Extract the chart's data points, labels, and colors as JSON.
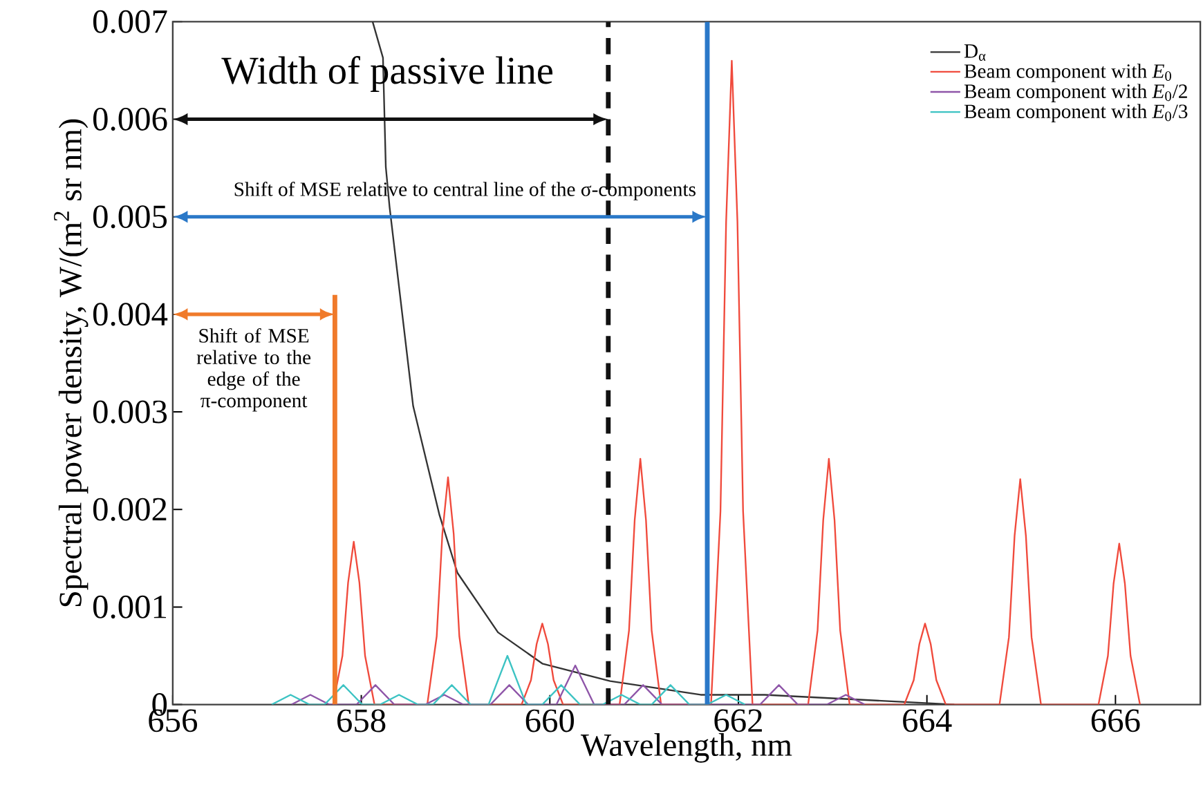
{
  "chart_data": {
    "type": "line",
    "xlabel": "Wavelength, nm",
    "ylabel": "Spectral power density, W/(m$^{2}$ sr nm)",
    "xlim": [
      656,
      666.9
    ],
    "ylim": [
      0,
      0.007
    ],
    "xticks": [
      656,
      658,
      660,
      662,
      664,
      666
    ],
    "yticks": [
      0,
      0.001,
      0.002,
      0.003,
      0.004,
      0.005,
      0.006,
      0.007
    ],
    "legend": "top right",
    "line_style": "solid",
    "series": [
      {
        "name": "D$_{α}$",
        "color": "#333333",
        "x": [
          658.12,
          658.23,
          658.26,
          658.3,
          658.55,
          658.83,
          659.02,
          659.45,
          659.92,
          660.64,
          661.6,
          662.28,
          664.29
        ],
        "values": [
          0.007,
          0.00663,
          0.00551,
          0.0051,
          0.00306,
          0.00194,
          0.00135,
          0.00074,
          0.00042,
          0.00024,
          0.0001,
          0.0001,
          0
        ]
      },
      {
        "name": "Beam component with *E*$_{0}$",
        "color": "#f04a3c",
        "x": [
          657.7,
          657.8,
          657.86,
          657.92,
          657.98,
          658.04,
          658.14,
          658.7,
          658.8,
          658.86,
          658.92,
          658.98,
          659.04,
          659.14,
          659.7,
          659.8,
          659.86,
          659.92,
          659.98,
          660.04,
          660.14,
          660.74,
          660.84,
          660.9,
          660.96,
          661.02,
          661.08,
          661.18,
          661.71,
          661.81,
          661.87,
          661.93,
          661.99,
          662.05,
          662.15,
          662.74,
          662.84,
          662.9,
          662.96,
          663.02,
          663.08,
          663.18,
          663.76,
          663.86,
          663.92,
          663.98,
          664.04,
          664.1,
          664.2,
          664.77,
          664.87,
          664.93,
          664.99,
          665.05,
          665.11,
          665.21,
          665.82,
          665.92,
          665.98,
          666.04,
          666.1,
          666.16,
          666.26
        ],
        "values": [
          0,
          0.0005,
          0.00125,
          0.00167,
          0.00125,
          0.0005,
          0,
          0,
          0.0007,
          0.00175,
          0.00233,
          0.00175,
          0.0007,
          0,
          0,
          0.00025,
          0.00062,
          0.00083,
          0.00062,
          0.00025,
          0,
          0,
          0.00076,
          0.00189,
          0.00252,
          0.00189,
          0.00076,
          0,
          0,
          0.00198,
          0.00495,
          0.0066,
          0.00495,
          0.00198,
          0,
          0,
          0.00076,
          0.00189,
          0.00252,
          0.00189,
          0.00076,
          0,
          0,
          0.00025,
          0.00062,
          0.00083,
          0.00062,
          0.00025,
          0,
          0,
          0.00069,
          0.00173,
          0.00231,
          0.00173,
          0.00069,
          0,
          0,
          0.0005,
          0.00124,
          0.00165,
          0.00124,
          0.0005,
          0
        ]
      },
      {
        "name": "Beam component with *E*$_{0}$/2",
        "color": "#8e55a8",
        "x": [
          657.26,
          657.46,
          657.66,
          657.95,
          658.15,
          658.35,
          658.68,
          658.88,
          659.08,
          659.37,
          659.57,
          659.77,
          660.07,
          660.27,
          660.47,
          660.79,
          660.99,
          661.19,
          662.23,
          662.43,
          662.63,
          662.94,
          663.14,
          663.34
        ],
        "values": [
          0,
          0.0001,
          0,
          0,
          0.0002,
          0,
          0,
          0.0001,
          0,
          0,
          0.0002,
          0,
          0,
          0.0004,
          0,
          0,
          0.0002,
          0,
          0,
          0.0002,
          0,
          0,
          0.0001,
          0
        ]
      },
      {
        "name": "Beam component with *E*$_{0}$/3",
        "color": "#3cc3c3",
        "x": [
          657.05,
          657.25,
          657.45,
          657.61,
          657.81,
          658.01,
          658.2,
          658.4,
          658.6,
          658.76,
          658.96,
          659.16,
          659.35,
          659.55,
          659.75,
          659.92,
          660.12,
          660.32,
          660.56,
          660.76,
          660.96,
          661.08,
          661.28,
          661.48,
          661.67,
          661.87,
          662.07
        ],
        "values": [
          0,
          0.0001,
          0,
          0,
          0.0002,
          0,
          0,
          0.0001,
          0,
          0,
          0.0002,
          0,
          0,
          0.0005,
          0,
          0,
          0.0002,
          0,
          0,
          0.0001,
          0,
          0,
          0.0002,
          0,
          0,
          0.0001,
          0
        ]
      },
      {
        "color": "#f07a2a",
        "x": [
          657.72,
          657.72
        ],
        "values": [
          0,
          0.0042
        ]
      }
    ],
    "ref_lines": [
      {
        "axis": "x",
        "value": 660.62,
        "color": "#111111",
        "line_style": "dashed"
      },
      {
        "axis": "x",
        "value": 661.67,
        "color": "#2a78c8",
        "line_style": "solid"
      }
    ],
    "annotations": [
      {
        "text": "Width of passive line",
        "x": 660.62,
        "y": 0.006
      },
      {
        "text": "Shift of MSE relative to central line of the σ-components",
        "x": 661.67,
        "y": 0.005
      },
      {
        "text": "Shift of MSE relative to the edge of the π-component",
        "x": 657.72,
        "y": 0.004
      }
    ]
  }
}
